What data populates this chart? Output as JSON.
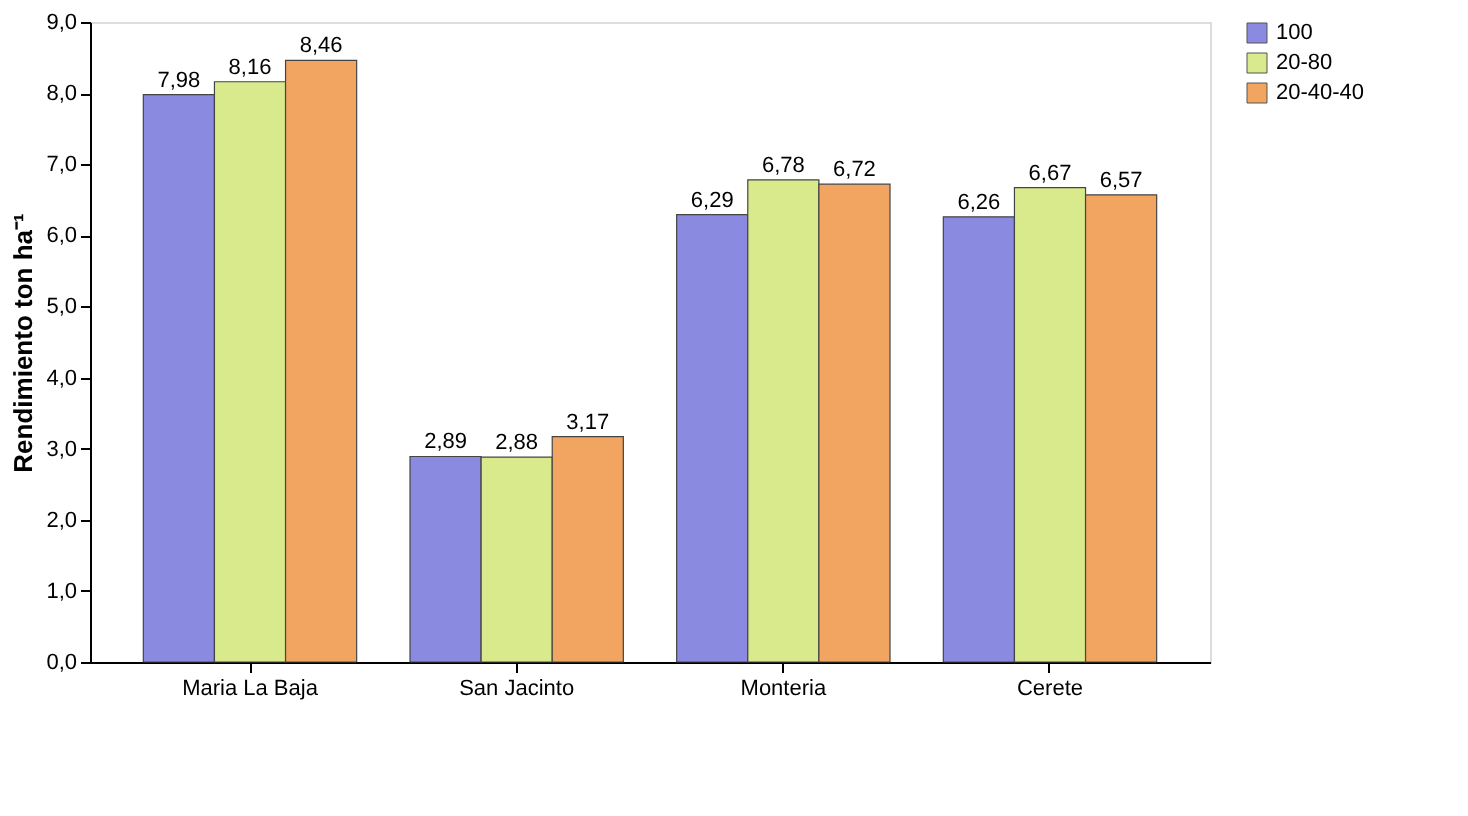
{
  "chart_data": {
    "type": "bar",
    "ylabel": "Rendimiento ton ha⁻¹",
    "categories": [
      "Maria La Baja",
      "San Jacinto",
      "Monteria",
      "Cerete"
    ],
    "series": [
      {
        "name": "100",
        "color": "#8a8ae0",
        "values": [
          7.98,
          2.89,
          6.29,
          6.26
        ],
        "value_labels": [
          "7,98",
          "2,89",
          "6,29",
          "6,26"
        ]
      },
      {
        "name": "20-80",
        "color": "#d9ea8c",
        "values": [
          8.16,
          2.88,
          6.78,
          6.67
        ],
        "value_labels": [
          "8,16",
          "2,88",
          "6,78",
          "6,67"
        ]
      },
      {
        "name": "20-40-40",
        "color": "#f2a561",
        "values": [
          8.46,
          3.17,
          6.72,
          6.57
        ],
        "value_labels": [
          "8,46",
          "3,17",
          "6,72",
          "6,57"
        ]
      }
    ],
    "ylim": [
      0,
      9
    ],
    "yticks": [
      {
        "value": 0,
        "label": "0,0"
      },
      {
        "value": 1,
        "label": "1,0"
      },
      {
        "value": 2,
        "label": "2,0"
      },
      {
        "value": 3,
        "label": "3,0"
      },
      {
        "value": 4,
        "label": "4,0"
      },
      {
        "value": 5,
        "label": "5,0"
      },
      {
        "value": 6,
        "label": "6,0"
      },
      {
        "value": 7,
        "label": "7,0"
      },
      {
        "value": 8,
        "label": "8,0"
      },
      {
        "value": 9,
        "label": "9,0"
      }
    ],
    "grid": false,
    "legend": "right"
  }
}
